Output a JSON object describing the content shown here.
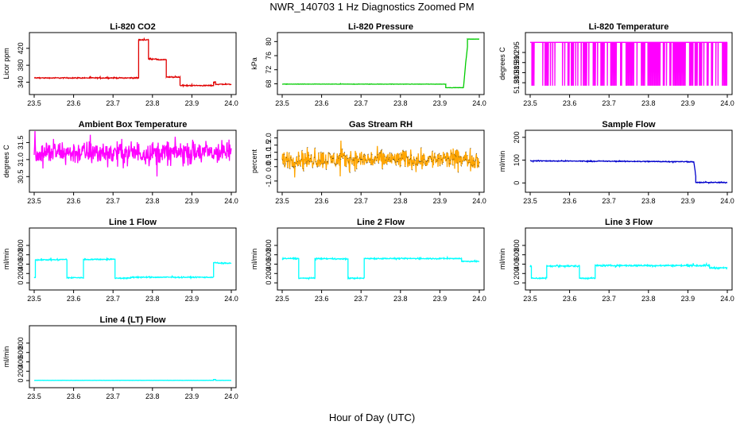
{
  "figure": {
    "title": "NWR_140703  1 Hz Diagnostics Zoomed PM",
    "xlabel": "Hour of Day (UTC)"
  },
  "chart_data": [
    {
      "type": "line",
      "title": "Li-820 CO2",
      "ylabel": "Licor ppm",
      "color": "#e00000",
      "xlim": [
        23.5,
        24.0
      ],
      "ylim": [
        322,
        446
      ],
      "xticks": [
        "23.5",
        "23.6",
        "23.7",
        "23.8",
        "23.9",
        "24.0"
      ],
      "yticks": [
        "340",
        "380",
        "420"
      ],
      "x": [
        23.5,
        23.765,
        23.765,
        23.79,
        23.79,
        23.81,
        23.81,
        23.835,
        23.835,
        23.87,
        23.87,
        23.955,
        23.955,
        23.96,
        23.96,
        24.0
      ],
      "y": [
        350,
        350,
        440,
        440,
        395,
        395,
        393,
        393,
        352,
        352,
        332,
        332,
        340,
        340,
        335,
        335
      ],
      "noise": 0.6
    },
    {
      "type": "line",
      "title": "Li-820 Pressure",
      "ylabel": "kPa",
      "color": "#00cc00",
      "xlim": [
        23.5,
        24.0
      ],
      "ylim": [
        66.3,
        81.2
      ],
      "xticks": [
        "23.5",
        "23.6",
        "23.7",
        "23.8",
        "23.9",
        "24.0"
      ],
      "yticks": [
        "68",
        "72",
        "76",
        "80"
      ],
      "x": [
        23.5,
        23.915,
        23.915,
        23.96,
        23.965,
        23.97,
        23.97,
        24.0
      ],
      "y": [
        67.9,
        67.9,
        66.9,
        66.9,
        73.5,
        78.5,
        80.7,
        80.7
      ],
      "noise": 0.02
    },
    {
      "type": "line",
      "title": "Li-820 Temperature",
      "ylabel": "degrees C",
      "color": "#ff00ff",
      "xlim": [
        23.5,
        24.0
      ],
      "ylim": [
        51.2765,
        51.3025
      ],
      "xticks": [
        "23.5",
        "23.6",
        "23.7",
        "23.8",
        "23.9",
        "24.0"
      ],
      "yticks": [
        "51.280",
        "51.285",
        "51.290",
        "51.295"
      ],
      "x": [
        23.5,
        24.0
      ],
      "y": [
        51.3,
        51.3
      ],
      "flicker": {
        "high": 51.3,
        "low": 51.2785
      }
    },
    {
      "type": "line",
      "title": "Ambient Box Temperature",
      "ylabel": "degrees C",
      "color": "#ff00ff",
      "xlim": [
        23.5,
        24.0
      ],
      "ylim": [
        30.18,
        31.72
      ],
      "xticks": [
        "23.5",
        "23.6",
        "23.7",
        "23.8",
        "23.9",
        "24.0"
      ],
      "yticks": [
        "30.5",
        "31.0",
        "31.5"
      ],
      "x": [
        23.5,
        24.0
      ],
      "y": [
        31.2,
        31.2
      ],
      "noise": 0.17
    },
    {
      "type": "line",
      "title": "Gas Stream RH",
      "ylabel": "percent",
      "color": "#ffa500",
      "xlim": [
        23.5,
        24.0
      ],
      "ylim": [
        -1.45,
        2.2
      ],
      "xticks": [
        "23.5",
        "23.6",
        "23.7",
        "23.8",
        "23.9",
        "24.0"
      ],
      "yticks": [
        "-1.0",
        "0.0",
        "0.5",
        "1.0",
        "1.5",
        "2.0"
      ],
      "x": [
        23.5,
        24.0
      ],
      "y": [
        0.5,
        0.5
      ],
      "noise": 0.33,
      "dots": "#333333"
    },
    {
      "type": "line",
      "title": "Sample Flow",
      "ylabel": "ml/min",
      "color": "#0000cc",
      "xlim": [
        23.5,
        24.0
      ],
      "ylim": [
        -20,
        210
      ],
      "xticks": [
        "23.5",
        "23.6",
        "23.7",
        "23.8",
        "23.9",
        "24.0"
      ],
      "yticks": [
        "0",
        "100",
        "200"
      ],
      "x": [
        23.5,
        23.915,
        23.915,
        23.92,
        23.92,
        24.0
      ],
      "y": [
        97,
        93,
        93,
        30,
        2,
        2
      ],
      "noise": 1.0
    },
    {
      "type": "line",
      "title": "Line 1 Flow",
      "ylabel": "ml/min",
      "color": "#00ffff",
      "xlim": [
        23.5,
        24.0
      ],
      "ylim": [
        -50,
        1070
      ],
      "xticks": [
        "23.5",
        "23.6",
        "23.7",
        "23.8",
        "23.9",
        "24.0"
      ],
      "yticks": [
        "0",
        "200",
        "400",
        "600",
        "800"
      ],
      "x": [
        23.5,
        23.503,
        23.503,
        23.583,
        23.583,
        23.625,
        23.625,
        23.705,
        23.705,
        23.745,
        23.745,
        23.955,
        23.955,
        23.965,
        23.965,
        24.0
      ],
      "y": [
        120,
        120,
        490,
        500,
        110,
        110,
        500,
        505,
        100,
        100,
        120,
        120,
        430,
        430,
        420,
        420
      ],
      "noise": 6
    },
    {
      "type": "line",
      "title": "Line 2 Flow",
      "ylabel": "ml/min",
      "color": "#00ffff",
      "xlim": [
        23.5,
        24.0
      ],
      "ylim": [
        -50,
        1070
      ],
      "xticks": [
        "23.5",
        "23.6",
        "23.7",
        "23.8",
        "23.9",
        "24.0"
      ],
      "yticks": [
        "0",
        "200",
        "400",
        "600",
        "800"
      ],
      "x": [
        23.5,
        23.542,
        23.542,
        23.583,
        23.583,
        23.667,
        23.667,
        23.708,
        23.708,
        23.955,
        23.955,
        24.0
      ],
      "y": [
        520,
        520,
        100,
        100,
        520,
        510,
        100,
        100,
        520,
        520,
        460,
        460
      ],
      "noise": 6
    },
    {
      "type": "line",
      "title": "Line 3 Flow",
      "ylabel": "ml/min",
      "color": "#00ffff",
      "xlim": [
        23.5,
        24.0
      ],
      "ylim": [
        -50,
        1070
      ],
      "xticks": [
        "23.5",
        "23.6",
        "23.7",
        "23.8",
        "23.9",
        "24.0"
      ],
      "yticks": [
        "0",
        "200",
        "400",
        "600",
        "800"
      ],
      "x": [
        23.5,
        23.503,
        23.503,
        23.542,
        23.542,
        23.625,
        23.625,
        23.665,
        23.665,
        23.955,
        23.955,
        24.0
      ],
      "y": [
        350,
        350,
        100,
        100,
        360,
        360,
        100,
        100,
        370,
        370,
        320,
        320
      ],
      "noise": 8
    },
    {
      "type": "line",
      "title": "Line 4 (LT) Flow",
      "ylabel": "ml/min",
      "color": "#00ffff",
      "xlim": [
        23.5,
        24.0
      ],
      "ylim": [
        -50,
        1070
      ],
      "xticks": [
        "23.5",
        "23.6",
        "23.7",
        "23.8",
        "23.9",
        "24.0"
      ],
      "yticks": [
        "0",
        "200",
        "400",
        "600",
        "800"
      ],
      "x": [
        23.5,
        23.955,
        23.955,
        23.96,
        23.96,
        24.0
      ],
      "y": [
        5,
        5,
        25,
        25,
        5,
        5
      ],
      "noise": 1
    }
  ]
}
